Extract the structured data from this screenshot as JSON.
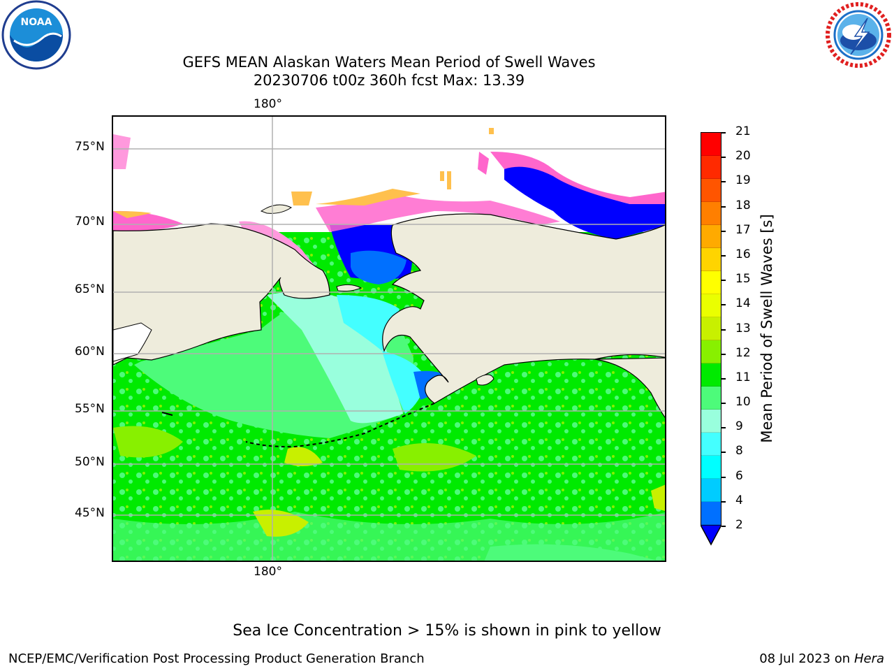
{
  "title": {
    "line1": "GEFS MEAN Alaskan Waters Mean Period of Swell Waves",
    "line2": "20230706 t00z 360h fcst   Max: 13.39"
  },
  "logos": {
    "noaa": {
      "icon": "noaa-logo-icon",
      "text": "NOAA"
    },
    "nws": {
      "icon": "nws-logo-icon",
      "text": "NATIONAL WEATHER SERVICE"
    }
  },
  "map": {
    "lon_labels": [
      "180°",
      "180°"
    ],
    "lat_labels": [
      "75°N",
      "70°N",
      "65°N",
      "60°N",
      "55°N",
      "50°N",
      "45°N"
    ],
    "land_color": "#eeecdc",
    "grid_color": "#b0b0b0"
  },
  "colorbar": {
    "label": "Mean Period of Swell Waves [s]",
    "ticks": [
      "21",
      "20",
      "19",
      "18",
      "17",
      "16",
      "15",
      "14",
      "13",
      "12",
      "11",
      "10",
      "9",
      "8",
      "6",
      "4",
      "2"
    ],
    "colors": [
      "#ff0000",
      "#ff2a00",
      "#ff5500",
      "#ff7f00",
      "#ffaa00",
      "#ffd400",
      "#ffff00",
      "#eaff00",
      "#c8f000",
      "#88f000",
      "#00ea00",
      "#4dfb7a",
      "#99ffdd",
      "#44ffff",
      "#00ffff",
      "#00ccff",
      "#0070ff"
    ],
    "under_color": "#0000ff"
  },
  "note": "Sea Ice Concentration > 15% is shown in pink to yellow",
  "footer": {
    "left": "NCEP/EMC/Verification Post Processing Product Generation Branch",
    "date": "08 Jul 2023 on ",
    "host": "Hera"
  }
}
